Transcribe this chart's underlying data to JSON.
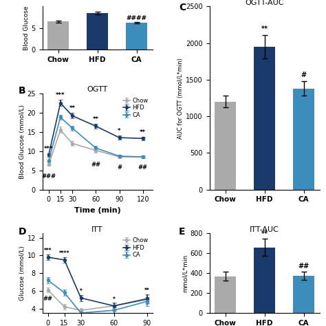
{
  "panel_A": {
    "categories": [
      "Chow",
      "HFD",
      "CA"
    ],
    "values": [
      6.5,
      8.5,
      6.3
    ],
    "errors": [
      0.2,
      0.3,
      0.15
    ],
    "colors": [
      "#aaaaaa",
      "#1a3a6b",
      "#3c8dbc"
    ],
    "ylabel": "Blood Glucose",
    "annotations": [
      "",
      "",
      "####"
    ],
    "ylim": [
      0,
      10
    ],
    "yticks": [
      0,
      5
    ],
    "clip_top": true
  },
  "panel_B": {
    "title": "OGTT",
    "xlabel": "Time (min)",
    "ylabel": "Blood Glucose (mmol/L)",
    "time": [
      0,
      15,
      30,
      60,
      90,
      120
    ],
    "chow_mean": [
      6.5,
      15.5,
      12.0,
      10.2,
      8.5,
      8.5
    ],
    "chow_err": [
      0.3,
      0.8,
      0.7,
      0.6,
      0.4,
      0.4
    ],
    "hfd_mean": [
      9.0,
      22.5,
      19.2,
      16.5,
      13.5,
      13.3
    ],
    "hfd_err": [
      0.4,
      0.8,
      0.7,
      0.6,
      0.5,
      0.4
    ],
    "ca_mean": [
      7.5,
      18.8,
      16.0,
      10.8,
      8.7,
      8.5
    ],
    "ca_err": [
      0.3,
      0.7,
      0.6,
      0.5,
      0.4,
      0.4
    ],
    "chow_color": "#aaaaaa",
    "hfd_color": "#1a3a6b",
    "ca_color": "#3c8dbc",
    "ylim": [
      0,
      25
    ],
    "yticks": [
      0,
      5,
      10,
      15,
      20,
      25
    ],
    "star_annotations": {
      "0": "***",
      "15": "***",
      "30": "**",
      "60": "**",
      "90": "*",
      "120": "**"
    },
    "hash_annotations": {
      "0": "###",
      "60": "##",
      "90": "#",
      "120": "##"
    }
  },
  "panel_C": {
    "title": "OGTT-AUC",
    "categories": [
      "Chow",
      "HFD",
      "CA"
    ],
    "values": [
      1200,
      1950,
      1380
    ],
    "errors": [
      80,
      160,
      100
    ],
    "colors": [
      "#aaaaaa",
      "#1a3a6b",
      "#3c8dbc"
    ],
    "ylabel": "AUC for OGTT (mmol/L*min)",
    "ylim": [
      0,
      2500
    ],
    "yticks": [
      0,
      500,
      1000,
      1500,
      2000,
      2500
    ],
    "annotations": [
      "",
      "**",
      "#"
    ]
  },
  "panel_D": {
    "title": "ITT",
    "xlabel": "",
    "ylabel": "Glucose (mmol/L)",
    "time": [
      0,
      15,
      30,
      60,
      90
    ],
    "chow_mean": [
      6.1,
      4.2,
      3.8,
      4.3,
      5.0
    ],
    "chow_err": [
      0.3,
      0.3,
      0.25,
      0.3,
      0.5
    ],
    "hfd_mean": [
      9.8,
      9.5,
      5.2,
      4.3,
      5.1
    ],
    "hfd_err": [
      0.3,
      0.3,
      0.35,
      0.35,
      0.5
    ],
    "ca_mean": [
      7.2,
      5.8,
      3.5,
      3.8,
      4.8
    ],
    "ca_err": [
      0.35,
      0.35,
      0.25,
      0.3,
      0.5
    ],
    "chow_color": "#aaaaaa",
    "hfd_color": "#1a3a6b",
    "ca_color": "#3c8dbc",
    "ylim": [
      3.5,
      12.5
    ],
    "yticks": [
      4,
      6,
      8,
      10,
      12
    ],
    "star_annotations": {
      "0": "***",
      "15": "****",
      "30": "*",
      "60": "*",
      "90": "**"
    },
    "hash_annotations": {
      "0": "##"
    }
  },
  "panel_E": {
    "title": "ITT-AUC",
    "categories": [
      "Chow",
      "HFD",
      "CA"
    ],
    "values": [
      370,
      660,
      375
    ],
    "errors": [
      45,
      85,
      40
    ],
    "colors": [
      "#aaaaaa",
      "#1a3a6b",
      "#3c8dbc"
    ],
    "ylabel": "mmol/L*min",
    "ylim": [
      0,
      800
    ],
    "yticks": [
      0,
      200,
      400,
      600,
      800
    ],
    "annotations": [
      "",
      "**",
      "##"
    ]
  }
}
